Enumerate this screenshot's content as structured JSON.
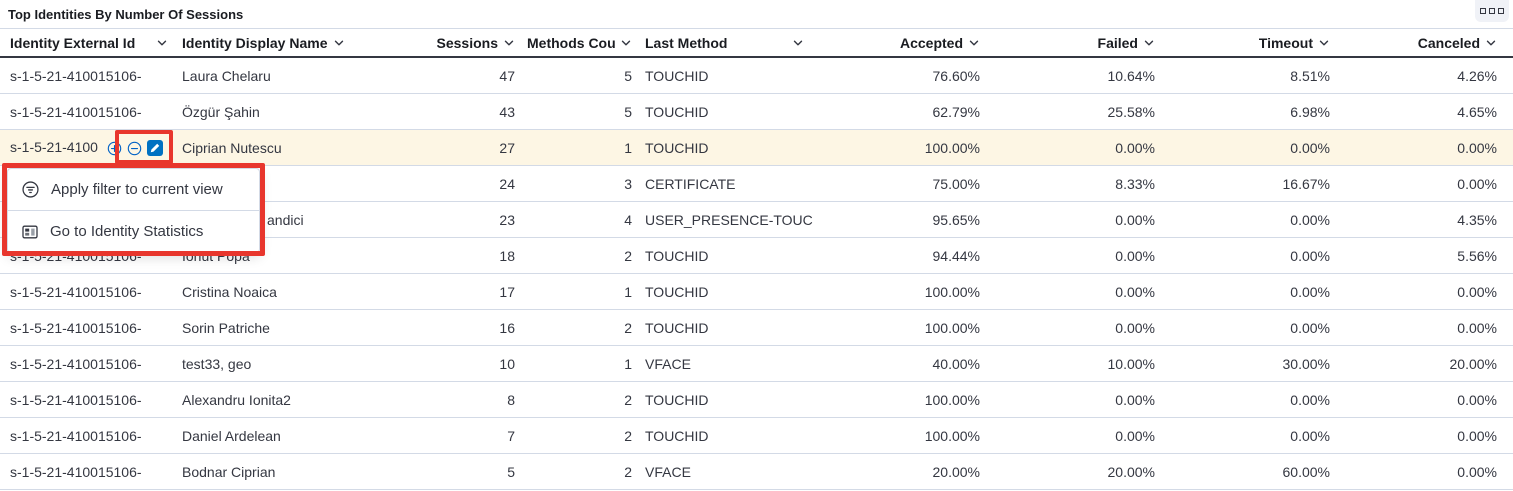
{
  "panel": {
    "title": "Top Identities By Number Of Sessions"
  },
  "colors": {
    "accent_blue": "#0061c5",
    "pencil_badge_blue": "#0071c2",
    "annotation_red": "#e8362d",
    "highlight_row": "#fdf6e4",
    "header_text": "#1a1c21",
    "body_text": "#343741",
    "row_border": "#d3dae6"
  },
  "table": {
    "columns": [
      {
        "label": "Identity External Id"
      },
      {
        "label": "Identity Display Name"
      },
      {
        "label": "Sessions"
      },
      {
        "label": "Methods Count"
      },
      {
        "label": "Last Method"
      },
      {
        "label": "Accepted"
      },
      {
        "label": "Failed"
      },
      {
        "label": "Timeout"
      },
      {
        "label": "Canceled"
      }
    ],
    "rows": [
      {
        "external_id": "s-1-5-21-410015106-",
        "display_name": "Laura Chelaru",
        "sessions": "47",
        "methods_count": "5",
        "last_method": "TOUCHID",
        "accepted": "76.60%",
        "failed": "10.64%",
        "timeout": "8.51%",
        "canceled": "4.26%"
      },
      {
        "external_id": "s-1-5-21-410015106-",
        "display_name": "Özgür Şahin",
        "sessions": "43",
        "methods_count": "5",
        "last_method": "TOUCHID",
        "accepted": "62.79%",
        "failed": "25.58%",
        "timeout": "6.98%",
        "canceled": "4.65%"
      },
      {
        "external_id": "s-1-5-21-4100",
        "display_name": "Ciprian Nutescu",
        "sessions": "27",
        "methods_count": "1",
        "last_method": "TOUCHID",
        "accepted": "100.00%",
        "failed": "0.00%",
        "timeout": "0.00%",
        "canceled": "0.00%",
        "highlighted": true,
        "show_filter_icons": true
      },
      {
        "external_id": "",
        "display_name": "",
        "sessions": "24",
        "methods_count": "3",
        "last_method": "CERTIFICATE",
        "accepted": "75.00%",
        "failed": "8.33%",
        "timeout": "16.67%",
        "canceled": "0.00%"
      },
      {
        "external_id": "",
        "display_name": "andici",
        "sessions": "23",
        "methods_count": "4",
        "last_method": "USER_PRESENCE-TOUC",
        "accepted": "95.65%",
        "failed": "0.00%",
        "timeout": "0.00%",
        "canceled": "4.35%",
        "name_indent": true
      },
      {
        "external_id": "s-1-5-21-410015106-",
        "display_name": "Ionut Popa",
        "sessions": "18",
        "methods_count": "2",
        "last_method": "TOUCHID",
        "accepted": "94.44%",
        "failed": "0.00%",
        "timeout": "0.00%",
        "canceled": "5.56%"
      },
      {
        "external_id": "s-1-5-21-410015106-",
        "display_name": "Cristina Noaica",
        "sessions": "17",
        "methods_count": "1",
        "last_method": "TOUCHID",
        "accepted": "100.00%",
        "failed": "0.00%",
        "timeout": "0.00%",
        "canceled": "0.00%"
      },
      {
        "external_id": "s-1-5-21-410015106-",
        "display_name": "Sorin Patriche",
        "sessions": "16",
        "methods_count": "2",
        "last_method": "TOUCHID",
        "accepted": "100.00%",
        "failed": "0.00%",
        "timeout": "0.00%",
        "canceled": "0.00%"
      },
      {
        "external_id": "s-1-5-21-410015106-",
        "display_name": "test33, geo",
        "sessions": "10",
        "methods_count": "1",
        "last_method": "VFACE",
        "accepted": "40.00%",
        "failed": "10.00%",
        "timeout": "30.00%",
        "canceled": "20.00%"
      },
      {
        "external_id": "s-1-5-21-410015106-",
        "display_name": "Alexandru Ionita2",
        "sessions": "8",
        "methods_count": "2",
        "last_method": "TOUCHID",
        "accepted": "100.00%",
        "failed": "0.00%",
        "timeout": "0.00%",
        "canceled": "0.00%"
      },
      {
        "external_id": "s-1-5-21-410015106-",
        "display_name": "Daniel Ardelean",
        "sessions": "7",
        "methods_count": "2",
        "last_method": "TOUCHID",
        "accepted": "100.00%",
        "failed": "0.00%",
        "timeout": "0.00%",
        "canceled": "0.00%"
      },
      {
        "external_id": "s-1-5-21-410015106-",
        "display_name": "Bodnar Ciprian",
        "sessions": "5",
        "methods_count": "2",
        "last_method": "VFACE",
        "accepted": "20.00%",
        "failed": "20.00%",
        "timeout": "60.00%",
        "canceled": "0.00%"
      }
    ]
  },
  "context_menu": {
    "items": [
      {
        "icon": "filter-circle-icon",
        "label": "Apply filter to current view"
      },
      {
        "icon": "stats-icon",
        "label": "Go to Identity Statistics"
      }
    ]
  }
}
